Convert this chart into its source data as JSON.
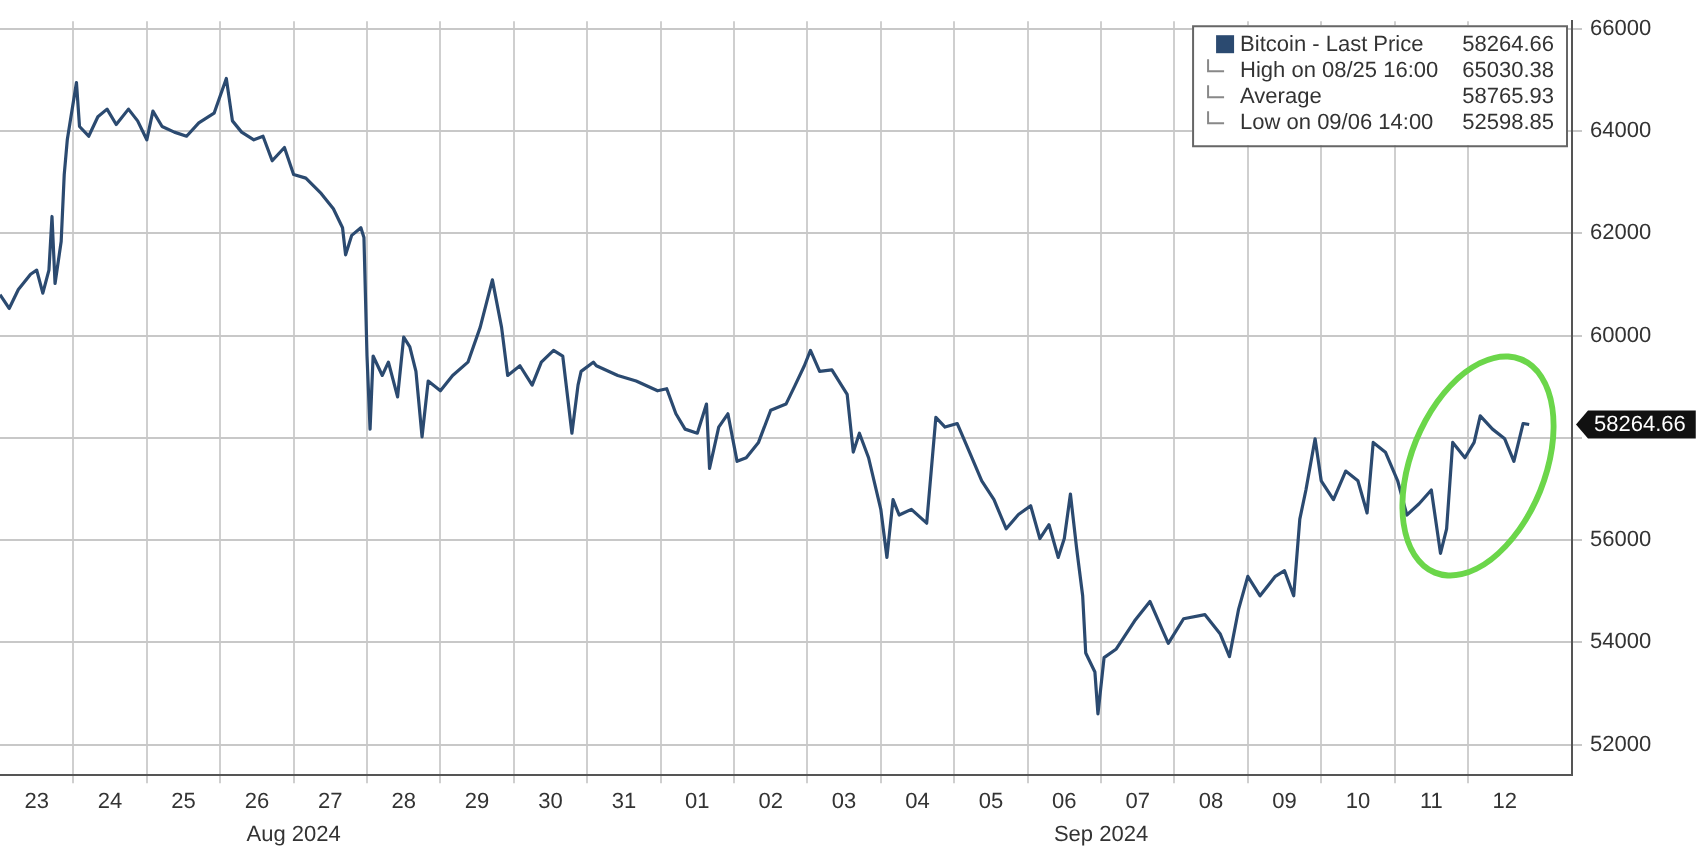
{
  "chart_data": {
    "type": "line",
    "x": [
      "2024-08-23T00:00",
      "2024-08-23T03:00",
      "2024-08-23T06:00",
      "2024-08-23T10:00",
      "2024-08-23T12:00",
      "2024-08-23T14:00",
      "2024-08-23T16:00",
      "2024-08-23T17:00",
      "2024-08-23T18:00",
      "2024-08-23T20:00",
      "2024-08-23T21:00",
      "2024-08-23T22:00",
      "2024-08-24T01:00",
      "2024-08-24T02:00",
      "2024-08-24T05:00",
      "2024-08-24T08:00",
      "2024-08-24T11:00",
      "2024-08-24T14:00",
      "2024-08-24T18:00",
      "2024-08-24T21:00",
      "2024-08-25T00:00",
      "2024-08-25T02:00",
      "2024-08-25T05:00",
      "2024-08-25T09:00",
      "2024-08-25T13:00",
      "2024-08-25T17:00",
      "2024-08-25T22:00",
      "2024-08-26T02:00",
      "2024-08-26T04:00",
      "2024-08-26T07:00",
      "2024-08-26T11:00",
      "2024-08-26T14:00",
      "2024-08-26T17:00",
      "2024-08-26T21:00",
      "2024-08-27T00:00",
      "2024-08-27T04:00",
      "2024-08-27T09:00",
      "2024-08-27T13:00",
      "2024-08-27T16:00",
      "2024-08-27T17:00",
      "2024-08-27T19:00",
      "2024-08-27T22:00",
      "2024-08-27T23:00",
      "2024-08-28T00:00",
      "2024-08-28T01:00",
      "2024-08-28T02:00",
      "2024-08-28T05:00",
      "2024-08-28T07:00",
      "2024-08-28T10:00",
      "2024-08-28T12:00",
      "2024-08-28T14:00",
      "2024-08-28T16:00",
      "2024-08-28T18:00",
      "2024-08-28T20:00",
      "2024-08-29T00:00",
      "2024-08-29T04:00",
      "2024-08-29T09:00",
      "2024-08-29T13:00",
      "2024-08-29T17:00",
      "2024-08-29T20:00",
      "2024-08-29T22:00",
      "2024-08-30T02:00",
      "2024-08-30T06:00",
      "2024-08-30T09:00",
      "2024-08-30T13:00",
      "2024-08-30T16:00",
      "2024-08-30T19:00",
      "2024-08-30T21:00",
      "2024-08-30T22:00",
      "2024-08-31T02:00",
      "2024-08-31T03:00",
      "2024-08-31T10:00",
      "2024-08-31T16:00",
      "2024-08-31T23:00",
      "2024-09-01T02:00",
      "2024-09-01T05:00",
      "2024-09-01T08:00",
      "2024-09-01T12:00",
      "2024-09-01T15:00",
      "2024-09-01T16:00",
      "2024-09-01T19:00",
      "2024-09-01T22:00",
      "2024-09-02T01:00",
      "2024-09-02T04:00",
      "2024-09-02T08:00",
      "2024-09-02T12:00",
      "2024-09-02T17:00",
      "2024-09-02T20:00",
      "2024-09-02T23:00",
      "2024-09-03T01:00",
      "2024-09-03T04:00",
      "2024-09-03T08:00",
      "2024-09-03T13:00",
      "2024-09-03T15:00",
      "2024-09-03T17:00",
      "2024-09-03T20:00",
      "2024-09-04T00:00",
      "2024-09-04T02:00",
      "2024-09-04T04:00",
      "2024-09-04T06:00",
      "2024-09-04T10:00",
      "2024-09-04T15:00",
      "2024-09-04T18:00",
      "2024-09-04T21:00",
      "2024-09-05T01:00",
      "2024-09-05T05:00",
      "2024-09-05T09:00",
      "2024-09-05T13:00",
      "2024-09-05T17:00",
      "2024-09-05T21:00",
      "2024-09-06T01:00",
      "2024-09-06T04:00",
      "2024-09-06T07:00",
      "2024-09-06T10:00",
      "2024-09-06T12:00",
      "2024-09-06T14:00",
      "2024-09-06T16:00",
      "2024-09-06T18:00",
      "2024-09-06T19:00",
      "2024-09-06T22:00",
      "2024-09-06T23:00",
      "2024-09-07T01:00",
      "2024-09-07T05:00",
      "2024-09-07T11:00",
      "2024-09-07T16:00",
      "2024-09-07T22:00",
      "2024-09-08T03:00",
      "2024-09-08T10:00",
      "2024-09-08T15:00",
      "2024-09-08T18:00",
      "2024-09-08T21:00",
      "2024-09-09T00:00",
      "2024-09-09T04:00",
      "2024-09-09T09:00",
      "2024-09-09T12:00",
      "2024-09-09T15:00",
      "2024-09-09T17:00",
      "2024-09-09T19:00",
      "2024-09-09T22:00",
      "2024-09-10T00:00",
      "2024-09-10T04:00",
      "2024-09-10T08:00",
      "2024-09-10T12:00",
      "2024-09-10T15:00",
      "2024-09-10T17:00",
      "2024-09-10T21:00",
      "2024-09-11T01:00",
      "2024-09-11T04:00",
      "2024-09-11T08:00",
      "2024-09-11T12:00",
      "2024-09-11T15:00",
      "2024-09-11T17:00",
      "2024-09-11T19:00",
      "2024-09-11T23:00",
      "2024-09-12T02:00",
      "2024-09-12T04:00",
      "2024-09-12T08:00",
      "2024-09-12T12:00",
      "2024-09-12T15:00",
      "2024-09-12T18:00",
      "2024-09-12T20:00"
    ],
    "series": [
      {
        "name": "Bitcoin - Last Price",
        "color": "#2b4a70",
        "values": [
          60800,
          60530,
          60900,
          61200,
          61280,
          60830,
          61280,
          62330,
          61020,
          61840,
          63150,
          63830,
          64950,
          64090,
          63900,
          64280,
          64430,
          64130,
          64430,
          64200,
          63830,
          64390,
          64090,
          63980,
          63900,
          64160,
          64350,
          65030,
          64200,
          63980,
          63830,
          63900,
          63420,
          63680,
          63150,
          63080,
          62780,
          62480,
          62110,
          61580,
          61960,
          62110,
          61920,
          59600,
          58170,
          59600,
          59220,
          59480,
          58800,
          59970,
          59780,
          59300,
          58020,
          59110,
          58920,
          59220,
          59480,
          60160,
          61090,
          60160,
          59220,
          59410,
          59030,
          59480,
          59710,
          59600,
          58090,
          59030,
          59300,
          59480,
          59410,
          59220,
          59110,
          58920,
          58960,
          58470,
          58170,
          58090,
          58660,
          57400,
          58210,
          58470,
          57540,
          57610,
          57910,
          58540,
          58660,
          59030,
          59410,
          59710,
          59300,
          59330,
          58850,
          57720,
          58090,
          57610,
          56600,
          55660,
          56790,
          56490,
          56600,
          56330,
          58400,
          58210,
          58280,
          57720,
          57160,
          56790,
          56220,
          56500,
          56670,
          56030,
          56300,
          55660,
          56030,
          56900,
          55850,
          54910,
          53790,
          53420,
          52600,
          53700,
          53870,
          54420,
          54800,
          53980,
          54460,
          54540,
          54160,
          53720,
          54650,
          55290,
          54910,
          55290,
          55400,
          54910,
          56410,
          56980,
          57980,
          57160,
          56790,
          57350,
          57160,
          56530,
          57910,
          57720,
          57160,
          56490,
          56710,
          56980,
          55740,
          56220,
          57910,
          57610,
          57910,
          58430,
          58170,
          57980,
          57540,
          58280,
          58260
        ]
      }
    ],
    "xlim": [
      "2024-08-23T00:00",
      "2024-09-13T10:00"
    ],
    "xticks": [
      {
        "value": "2024-08-23T12:00",
        "label": "23"
      },
      {
        "value": "2024-08-24T00:00",
        "label": null
      },
      {
        "value": "2024-08-24T12:00",
        "label": "24"
      },
      {
        "value": "2024-08-25T00:00",
        "label": null
      },
      {
        "value": "2024-08-25T12:00",
        "label": "25"
      },
      {
        "value": "2024-08-26T00:00",
        "label": null
      },
      {
        "value": "2024-08-26T12:00",
        "label": "26"
      },
      {
        "value": "2024-08-27T00:00",
        "label": null
      },
      {
        "value": "2024-08-27T12:00",
        "label": "27"
      },
      {
        "value": "2024-08-28T00:00",
        "label": null
      },
      {
        "value": "2024-08-28T12:00",
        "label": "28"
      },
      {
        "value": "2024-08-29T00:00",
        "label": null
      },
      {
        "value": "2024-08-29T12:00",
        "label": "29"
      },
      {
        "value": "2024-08-30T00:00",
        "label": null
      },
      {
        "value": "2024-08-30T12:00",
        "label": "30"
      },
      {
        "value": "2024-08-31T00:00",
        "label": null
      },
      {
        "value": "2024-08-31T12:00",
        "label": "31"
      },
      {
        "value": "2024-09-01T00:00",
        "label": null
      },
      {
        "value": "2024-09-01T12:00",
        "label": "01"
      },
      {
        "value": "2024-09-02T00:00",
        "label": null
      },
      {
        "value": "2024-09-02T12:00",
        "label": "02"
      },
      {
        "value": "2024-09-03T00:00",
        "label": null
      },
      {
        "value": "2024-09-03T12:00",
        "label": "03"
      },
      {
        "value": "2024-09-04T00:00",
        "label": null
      },
      {
        "value": "2024-09-04T12:00",
        "label": "04"
      },
      {
        "value": "2024-09-05T00:00",
        "label": null
      },
      {
        "value": "2024-09-05T12:00",
        "label": "05"
      },
      {
        "value": "2024-09-06T00:00",
        "label": null
      },
      {
        "value": "2024-09-06T12:00",
        "label": "06"
      },
      {
        "value": "2024-09-07T00:00",
        "label": null
      },
      {
        "value": "2024-09-07T12:00",
        "label": "07"
      },
      {
        "value": "2024-09-08T00:00",
        "label": null
      },
      {
        "value": "2024-09-08T12:00",
        "label": "08"
      },
      {
        "value": "2024-09-09T00:00",
        "label": null
      },
      {
        "value": "2024-09-09T12:00",
        "label": "09"
      },
      {
        "value": "2024-09-10T00:00",
        "label": null
      },
      {
        "value": "2024-09-10T12:00",
        "label": "10"
      },
      {
        "value": "2024-09-11T00:00",
        "label": null
      },
      {
        "value": "2024-09-11T12:00",
        "label": "11"
      },
      {
        "value": "2024-09-12T00:00",
        "label": null
      },
      {
        "value": "2024-09-12T12:00",
        "label": "12"
      }
    ],
    "x2lim": [
      "2024-08-23T00:00",
      "2024-09-13T10:00"
    ],
    "x2ticks": [
      {
        "value": "2024-08-27T00:00",
        "label": "Aug 2024"
      },
      {
        "value": "2024-09-07T00:00",
        "label": "Sep 2024"
      }
    ],
    "ylim": [
      51400,
      66150
    ],
    "yticks": [
      52000,
      54000,
      56000,
      {
        "value": 58000,
        "label": null
      },
      60000,
      62000,
      64000,
      66000
    ],
    "grid": true,
    "legend": "top right",
    "marker": "none",
    "line_style": "solid",
    "annotations": [
      "58264.66",
      "High on 08/25 16:00",
      "65030.38",
      "Average",
      "58765.93",
      "Low on 09/06 14:00",
      "52598.85",
      "58264.66"
    ]
  }
}
